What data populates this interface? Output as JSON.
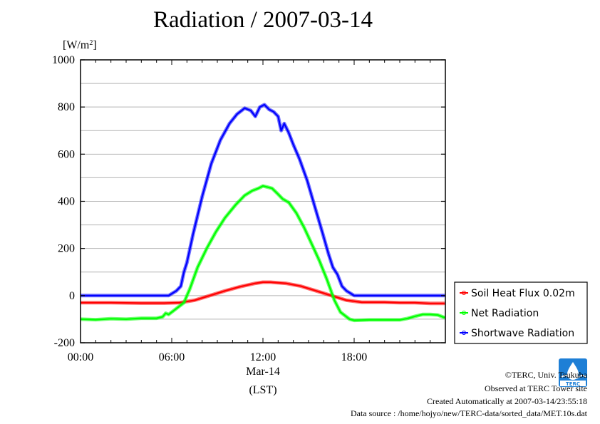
{
  "title": "Radiation / 2007-03-14",
  "chart_data": {
    "type": "line",
    "title": "Radiation / 2007-03-14",
    "ylabel_unit": "W/m",
    "ylabel_sup": "2",
    "xlabel_date": "Mar-14",
    "xlabel": "(LST)",
    "xlim": [
      0,
      24
    ],
    "ylim": [
      -200,
      1000
    ],
    "x_ticks": [
      0,
      6,
      12,
      18
    ],
    "x_tick_labels": [
      "00:00",
      "06:00",
      "12:00",
      "18:00"
    ],
    "y_ticks": [
      -200,
      0,
      200,
      400,
      600,
      800,
      1000
    ],
    "y_tick_labels": [
      "-200",
      "0",
      "200",
      "400",
      "600",
      "800",
      "1000"
    ],
    "y_grid": [
      -100,
      0,
      100,
      200,
      300,
      400,
      500,
      600,
      700,
      800,
      900
    ],
    "legend_position": "right-bottom",
    "series": [
      {
        "name": "Soil Heat Flux 0.02m",
        "color": "#ff0000",
        "x": [
          0,
          2,
          4,
          5.5,
          6.5,
          7.5,
          8.5,
          9.5,
          10.5,
          11.5,
          12,
          12.5,
          13.5,
          14.5,
          15.5,
          16.5,
          17.5,
          18.5,
          20,
          21,
          22,
          23,
          23.9
        ],
        "y": [
          -30,
          -30,
          -32,
          -32,
          -30,
          -20,
          0,
          20,
          38,
          52,
          57,
          57,
          52,
          40,
          20,
          0,
          -20,
          -28,
          -28,
          -30,
          -30,
          -33,
          -33
        ]
      },
      {
        "name": "Net Radiation",
        "color": "#00ff00",
        "x": [
          0,
          1,
          2,
          3,
          4,
          5,
          5.4,
          5.6,
          5.8,
          6.2,
          6.5,
          6.8,
          7.2,
          7.7,
          8.3,
          8.9,
          9.5,
          10.2,
          10.8,
          11.3,
          11.7,
          12,
          12.3,
          12.6,
          13,
          13.3,
          13.7,
          14.2,
          14.7,
          15.2,
          15.7,
          16.2,
          16.7,
          17.1,
          17.4,
          17.7,
          18,
          19,
          20,
          21,
          21.5,
          22,
          22.5,
          23,
          23.5,
          23.9
        ],
        "y": [
          -100,
          -102,
          -98,
          -100,
          -96,
          -96,
          -90,
          -75,
          -80,
          -60,
          -45,
          -30,
          30,
          120,
          200,
          270,
          330,
          385,
          425,
          445,
          455,
          465,
          460,
          455,
          430,
          410,
          395,
          350,
          290,
          220,
          150,
          70,
          -20,
          -70,
          -85,
          -100,
          -105,
          -103,
          -103,
          -103,
          -97,
          -88,
          -80,
          -80,
          -82,
          -92
        ]
      },
      {
        "name": "Shortwave Radiation",
        "color": "#0000ff",
        "x": [
          0,
          2,
          4,
          5.8,
          6.3,
          6.6,
          6.8,
          7,
          7.4,
          8,
          8.6,
          9.2,
          9.8,
          10.3,
          10.8,
          11.2,
          11.5,
          11.8,
          12.1,
          12.4,
          12.7,
          13,
          13.2,
          13.4,
          13.7,
          14,
          14.4,
          14.9,
          15.4,
          15.9,
          16.3,
          16.6,
          16.9,
          17.2,
          17.5,
          18,
          20,
          22,
          23.9
        ],
        "y": [
          0,
          0,
          0,
          0,
          20,
          40,
          100,
          140,
          260,
          420,
          560,
          660,
          730,
          770,
          795,
          785,
          760,
          800,
          810,
          790,
          780,
          760,
          700,
          730,
          690,
          640,
          580,
          490,
          380,
          270,
          180,
          120,
          90,
          40,
          20,
          0,
          0,
          0,
          0
        ]
      }
    ]
  },
  "footer": {
    "copyright": "©TERC, Univ. Tsukuba",
    "observed": "Observed at TERC Tower site",
    "created": "Created Automatically at 2007-03-14/23:55:18",
    "source": "Data source : /home/hojyo/new/TERC-data/sorted_data/MET.10s.dat",
    "logo_text": "TERC",
    "logo_color": "#1e7fd6"
  }
}
